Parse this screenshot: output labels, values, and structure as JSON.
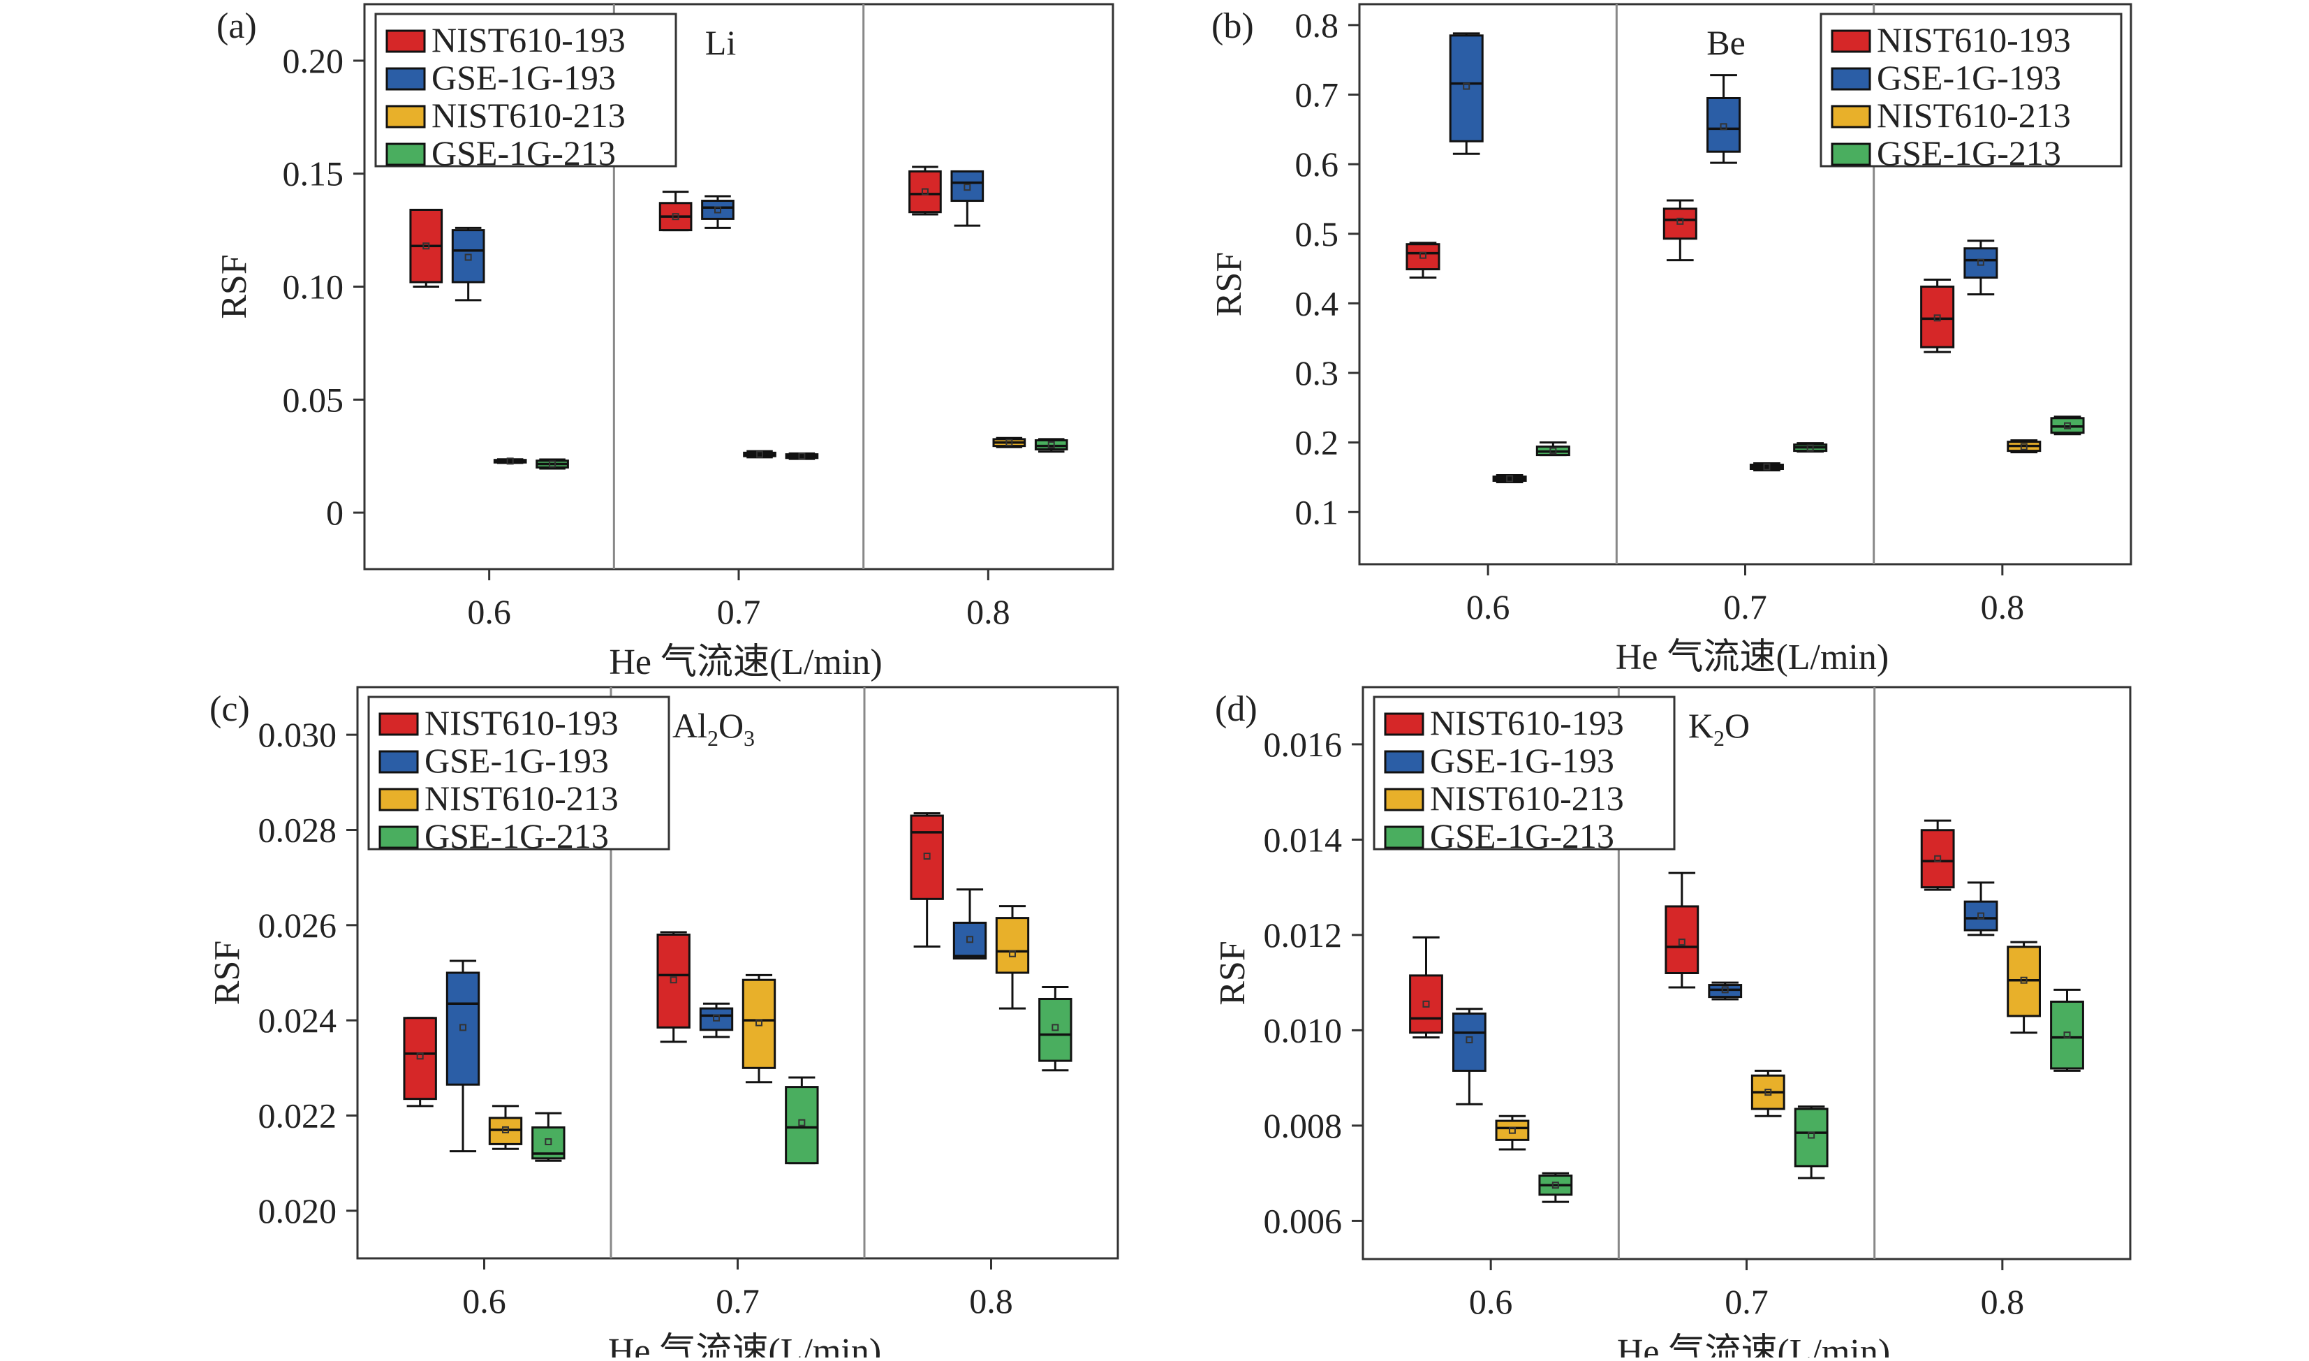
{
  "groups": [
    "0.6",
    "0.7",
    "0.8"
  ],
  "xlabel": "He 气流速(L/min)",
  "ylabel": "RSF",
  "series_meta": [
    {
      "name": "NIST610-193",
      "color": "#d62728"
    },
    {
      "name": "GSE-1G-193",
      "color": "#2b5ea6"
    },
    {
      "name": "NIST610-213",
      "color": "#e8b02a"
    },
    {
      "name": "GSE-1G-213",
      "color": "#4aae5f"
    }
  ],
  "chart_data": [
    {
      "type": "box",
      "panel_label": "(a)",
      "element": "Li",
      "element_sub": "",
      "element_tail": "",
      "ylabel": "RSF",
      "xlabel": "He 气流速(L/min)",
      "ylim": [
        -0.025,
        0.225
      ],
      "yticks": [
        0,
        0.05,
        0.1,
        0.15,
        0.2
      ],
      "ytick_labels": [
        "0",
        "0.05",
        "0.10",
        "0.15",
        "0.20"
      ],
      "legend": "top-left",
      "categories": [
        "0.6",
        "0.7",
        "0.8"
      ],
      "series": [
        {
          "name": "NIST610-193",
          "values": [
            {
              "min": 0.1,
              "q1": 0.102,
              "median": 0.118,
              "q3": 0.134,
              "max": 0.134,
              "mean": 0.118
            },
            {
              "min": 0.125,
              "q1": 0.125,
              "median": 0.131,
              "q3": 0.137,
              "max": 0.142,
              "mean": 0.131
            },
            {
              "min": 0.132,
              "q1": 0.133,
              "median": 0.141,
              "q3": 0.151,
              "max": 0.153,
              "mean": 0.142
            }
          ]
        },
        {
          "name": "GSE-1G-193",
          "values": [
            {
              "min": 0.094,
              "q1": 0.102,
              "median": 0.116,
              "q3": 0.125,
              "max": 0.126,
              "mean": 0.113
            },
            {
              "min": 0.126,
              "q1": 0.13,
              "median": 0.135,
              "q3": 0.138,
              "max": 0.14,
              "mean": 0.134
            },
            {
              "min": 0.127,
              "q1": 0.138,
              "median": 0.146,
              "q3": 0.151,
              "max": 0.151,
              "mean": 0.144
            }
          ]
        },
        {
          "name": "NIST610-213",
          "values": [
            {
              "min": 0.022,
              "q1": 0.0222,
              "median": 0.0228,
              "q3": 0.0233,
              "max": 0.0236,
              "mean": 0.0228
            },
            {
              "min": 0.0245,
              "q1": 0.025,
              "median": 0.0258,
              "q3": 0.0265,
              "max": 0.0272,
              "mean": 0.0258
            },
            {
              "min": 0.029,
              "q1": 0.0295,
              "median": 0.031,
              "q3": 0.0325,
              "max": 0.033,
              "mean": 0.031
            }
          ]
        },
        {
          "name": "GSE-1G-213",
          "values": [
            {
              "min": 0.0195,
              "q1": 0.02,
              "median": 0.0215,
              "q3": 0.023,
              "max": 0.0235,
              "mean": 0.0215
            },
            {
              "min": 0.0238,
              "q1": 0.0242,
              "median": 0.025,
              "q3": 0.0258,
              "max": 0.0262,
              "mean": 0.025
            },
            {
              "min": 0.027,
              "q1": 0.028,
              "median": 0.0295,
              "q3": 0.032,
              "max": 0.0325,
              "mean": 0.03
            }
          ]
        }
      ]
    },
    {
      "type": "box",
      "panel_label": "(b)",
      "element": "Be",
      "element_sub": "",
      "element_tail": "",
      "ylabel": "RSF",
      "xlabel": "He 气流速(L/min)",
      "ylim": [
        0.025,
        0.83
      ],
      "yticks": [
        0.1,
        0.2,
        0.3,
        0.4,
        0.5,
        0.6,
        0.7,
        0.8
      ],
      "ytick_labels": [
        "0.1",
        "0.2",
        "0.3",
        "0.4",
        "0.5",
        "0.6",
        "0.7",
        "0.8"
      ],
      "legend": "top-right",
      "categories": [
        "0.6",
        "0.7",
        "0.8"
      ],
      "series": [
        {
          "name": "NIST610-193",
          "values": [
            {
              "min": 0.437,
              "q1": 0.449,
              "median": 0.472,
              "q3": 0.485,
              "max": 0.487,
              "mean": 0.469
            },
            {
              "min": 0.462,
              "q1": 0.493,
              "median": 0.52,
              "q3": 0.536,
              "max": 0.548,
              "mean": 0.518
            },
            {
              "min": 0.33,
              "q1": 0.337,
              "median": 0.378,
              "q3": 0.424,
              "max": 0.434,
              "mean": 0.379
            }
          ]
        },
        {
          "name": "GSE-1G-193",
          "values": [
            {
              "min": 0.615,
              "q1": 0.633,
              "median": 0.716,
              "q3": 0.785,
              "max": 0.788,
              "mean": 0.712
            },
            {
              "min": 0.602,
              "q1": 0.618,
              "median": 0.651,
              "q3": 0.695,
              "max": 0.728,
              "mean": 0.654
            },
            {
              "min": 0.413,
              "q1": 0.437,
              "median": 0.462,
              "q3": 0.479,
              "max": 0.49,
              "mean": 0.459
            }
          ]
        },
        {
          "name": "NIST610-213",
          "values": [
            {
              "min": 0.143,
              "q1": 0.145,
              "median": 0.148,
              "q3": 0.151,
              "max": 0.153,
              "mean": 0.148
            },
            {
              "min": 0.16,
              "q1": 0.162,
              "median": 0.165,
              "q3": 0.168,
              "max": 0.17,
              "mean": 0.165
            },
            {
              "min": 0.186,
              "q1": 0.188,
              "median": 0.195,
              "q3": 0.201,
              "max": 0.203,
              "mean": 0.194
            }
          ]
        },
        {
          "name": "GSE-1G-213",
          "values": [
            {
              "min": 0.182,
              "q1": 0.182,
              "median": 0.187,
              "q3": 0.194,
              "max": 0.2,
              "mean": 0.188
            },
            {
              "min": 0.187,
              "q1": 0.188,
              "median": 0.193,
              "q3": 0.197,
              "max": 0.199,
              "mean": 0.192
            },
            {
              "min": 0.212,
              "q1": 0.214,
              "median": 0.223,
              "q3": 0.235,
              "max": 0.237,
              "mean": 0.224
            }
          ]
        }
      ]
    },
    {
      "type": "box",
      "panel_label": "(c)",
      "element": "Al",
      "element_sub": "2",
      "element_tail": "O",
      "element_sub2": "3",
      "ylabel": "RSF",
      "xlabel": "He 气流速(L/min)",
      "ylim": [
        0.019,
        0.031
      ],
      "yticks": [
        0.02,
        0.022,
        0.024,
        0.026,
        0.028,
        0.03
      ],
      "ytick_labels": [
        "0.020",
        "0.022",
        "0.024",
        "0.026",
        "0.028",
        "0.030"
      ],
      "legend": "top-left",
      "categories": [
        "0.6",
        "0.7",
        "0.8"
      ],
      "series": [
        {
          "name": "NIST610-193",
          "values": [
            {
              "min": 0.0222,
              "q1": 0.02235,
              "median": 0.0233,
              "q3": 0.02405,
              "max": 0.02405,
              "mean": 0.02325
            },
            {
              "min": 0.02355,
              "q1": 0.02385,
              "median": 0.02495,
              "q3": 0.0258,
              "max": 0.02585,
              "mean": 0.02485
            },
            {
              "min": 0.02555,
              "q1": 0.02655,
              "median": 0.02795,
              "q3": 0.0283,
              "max": 0.02835,
              "mean": 0.02745
            }
          ]
        },
        {
          "name": "GSE-1G-193",
          "values": [
            {
              "min": 0.02125,
              "q1": 0.02265,
              "median": 0.02435,
              "q3": 0.025,
              "max": 0.02525,
              "mean": 0.02385
            },
            {
              "min": 0.02365,
              "q1": 0.0238,
              "median": 0.0241,
              "q3": 0.02425,
              "max": 0.02435,
              "mean": 0.02405
            },
            {
              "min": 0.0253,
              "q1": 0.0253,
              "median": 0.02535,
              "q3": 0.02605,
              "max": 0.02675,
              "mean": 0.0257
            }
          ]
        },
        {
          "name": "NIST610-213",
          "values": [
            {
              "min": 0.0213,
              "q1": 0.0214,
              "median": 0.0217,
              "q3": 0.02195,
              "max": 0.0222,
              "mean": 0.0217
            },
            {
              "min": 0.0227,
              "q1": 0.023,
              "median": 0.024,
              "q3": 0.02485,
              "max": 0.02495,
              "mean": 0.02395
            },
            {
              "min": 0.02425,
              "q1": 0.025,
              "median": 0.02545,
              "q3": 0.02615,
              "max": 0.0264,
              "mean": 0.0254
            }
          ]
        },
        {
          "name": "GSE-1G-213",
          "values": [
            {
              "min": 0.02105,
              "q1": 0.0211,
              "median": 0.0212,
              "q3": 0.02175,
              "max": 0.02205,
              "mean": 0.02145
            },
            {
              "min": 0.021,
              "q1": 0.021,
              "median": 0.02175,
              "q3": 0.0226,
              "max": 0.0228,
              "mean": 0.02185
            },
            {
              "min": 0.02295,
              "q1": 0.02315,
              "median": 0.0237,
              "q3": 0.02445,
              "max": 0.0247,
              "mean": 0.02385
            }
          ]
        }
      ]
    },
    {
      "type": "box",
      "panel_label": "(d)",
      "element": "K",
      "element_sub": "2",
      "element_tail": "O",
      "element_sub2": "",
      "ylabel": "RSF",
      "xlabel": "He 气流速(L/min)",
      "ylim": [
        0.0052,
        0.0172
      ],
      "yticks": [
        0.006,
        0.008,
        0.01,
        0.012,
        0.014,
        0.016
      ],
      "ytick_labels": [
        "0.006",
        "0.008",
        "0.010",
        "0.012",
        "0.014",
        "0.016"
      ],
      "legend": "top-left",
      "categories": [
        "0.6",
        "0.7",
        "0.8"
      ],
      "series": [
        {
          "name": "NIST610-193",
          "values": [
            {
              "min": 0.00985,
              "q1": 0.00995,
              "median": 0.01025,
              "q3": 0.01115,
              "max": 0.01195,
              "mean": 0.01055
            },
            {
              "min": 0.0109,
              "q1": 0.0112,
              "median": 0.01175,
              "q3": 0.0126,
              "max": 0.0133,
              "mean": 0.01185
            },
            {
              "min": 0.01295,
              "q1": 0.013,
              "median": 0.01355,
              "q3": 0.0142,
              "max": 0.0144,
              "mean": 0.0136
            }
          ]
        },
        {
          "name": "GSE-1G-193",
          "values": [
            {
              "min": 0.00845,
              "q1": 0.00915,
              "median": 0.00995,
              "q3": 0.01035,
              "max": 0.01045,
              "mean": 0.0098
            },
            {
              "min": 0.01065,
              "q1": 0.0107,
              "median": 0.01085,
              "q3": 0.01095,
              "max": 0.011,
              "mean": 0.01085
            },
            {
              "min": 0.012,
              "q1": 0.0121,
              "median": 0.01235,
              "q3": 0.0127,
              "max": 0.0131,
              "mean": 0.0124
            }
          ]
        },
        {
          "name": "NIST610-213",
          "values": [
            {
              "min": 0.0075,
              "q1": 0.0077,
              "median": 0.00795,
              "q3": 0.0081,
              "max": 0.0082,
              "mean": 0.0079
            },
            {
              "min": 0.0082,
              "q1": 0.00835,
              "median": 0.0087,
              "q3": 0.00905,
              "max": 0.00915,
              "mean": 0.0087
            },
            {
              "min": 0.00995,
              "q1": 0.0103,
              "median": 0.01105,
              "q3": 0.01175,
              "max": 0.01185,
              "mean": 0.01105
            }
          ]
        },
        {
          "name": "GSE-1G-213",
          "values": [
            {
              "min": 0.0064,
              "q1": 0.00655,
              "median": 0.00675,
              "q3": 0.00695,
              "max": 0.007,
              "mean": 0.00675
            },
            {
              "min": 0.0069,
              "q1": 0.00715,
              "median": 0.00785,
              "q3": 0.00835,
              "max": 0.0084,
              "mean": 0.0078
            },
            {
              "min": 0.00915,
              "q1": 0.0092,
              "median": 0.00985,
              "q3": 0.0106,
              "max": 0.01085,
              "mean": 0.0099
            }
          ]
        }
      ]
    }
  ]
}
